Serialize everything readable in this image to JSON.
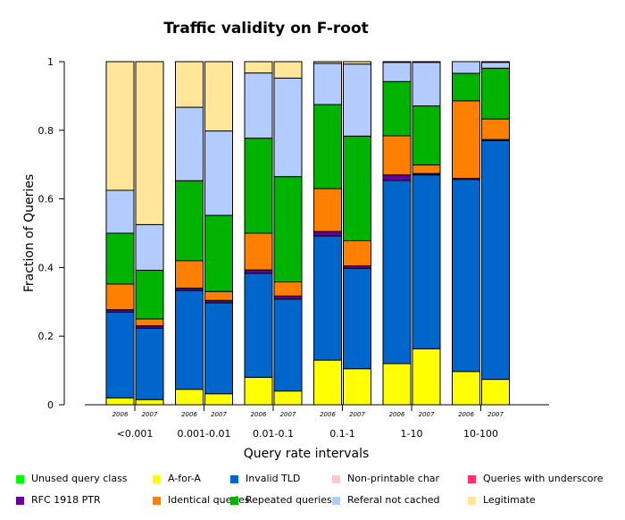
{
  "chart_data": {
    "type": "bar",
    "stacked": true,
    "title": "Traffic validity on F-root",
    "xlabel": "Query rate intervals",
    "ylabel": "Fraction of Queries",
    "ylim": [
      0,
      1
    ],
    "yticks": [
      "0",
      "0.2",
      "0.4",
      "0.6",
      "0.8",
      "1"
    ],
    "groups": [
      {
        "label": "<0.001",
        "bars": [
          {
            "label": "2006",
            "values": [
              0.0,
              0.02,
              0.25,
              0.0,
              0.0,
              0.007,
              0.075,
              0.148,
              0.125,
              0.375
            ]
          },
          {
            "label": "2007",
            "values": [
              0.0,
              0.015,
              0.208,
              0.0,
              0.0,
              0.007,
              0.02,
              0.142,
              0.133,
              0.475
            ]
          }
        ]
      },
      {
        "label": "0.001-0.01",
        "bars": [
          {
            "label": "2006",
            "values": [
              0.0,
              0.045,
              0.288,
              0.0,
              0.0,
              0.007,
              0.08,
              0.233,
              0.214,
              0.133
            ]
          },
          {
            "label": "2007",
            "values": [
              0.0,
              0.032,
              0.265,
              0.0,
              0.0,
              0.007,
              0.026,
              0.222,
              0.246,
              0.202
            ]
          }
        ]
      },
      {
        "label": "0.01-0.1",
        "bars": [
          {
            "label": "2006",
            "values": [
              0.0,
              0.08,
              0.303,
              0.0,
              0.0,
              0.01,
              0.107,
              0.277,
              0.19,
              0.033
            ]
          },
          {
            "label": "2007",
            "values": [
              0.0,
              0.04,
              0.268,
              0.0,
              0.0,
              0.009,
              0.041,
              0.307,
              0.287,
              0.048
            ]
          }
        ]
      },
      {
        "label": "0.1-1",
        "bars": [
          {
            "label": "2006",
            "values": [
              0.0,
              0.13,
              0.362,
              0.0,
              0.0,
              0.013,
              0.125,
              0.245,
              0.12,
              0.005
            ]
          },
          {
            "label": "2007",
            "values": [
              0.0,
              0.105,
              0.293,
              0.0,
              0.0,
              0.007,
              0.073,
              0.305,
              0.21,
              0.007
            ]
          }
        ]
      },
      {
        "label": "1-10",
        "bars": [
          {
            "label": "2006",
            "values": [
              0.0,
              0.12,
              0.534,
              0.0,
              0.0,
              0.016,
              0.114,
              0.158,
              0.056,
              0.002
            ]
          },
          {
            "label": "2007",
            "values": [
              0.0,
              0.163,
              0.507,
              0.0,
              0.0,
              0.004,
              0.025,
              0.172,
              0.127,
              0.002
            ]
          }
        ]
      },
      {
        "label": "10-100",
        "bars": [
          {
            "label": "2006",
            "values": [
              0.0,
              0.097,
              0.56,
              0.0,
              0.0,
              0.003,
              0.226,
              0.08,
              0.034,
              0.0
            ]
          },
          {
            "label": "2007",
            "values": [
              0.0,
              0.074,
              0.696,
              0.0,
              0.0,
              0.003,
              0.06,
              0.148,
              0.017,
              0.002
            ]
          }
        ]
      }
    ],
    "series": [
      {
        "name": "Unused query class",
        "color": "#00ff00"
      },
      {
        "name": "A-for-A",
        "color": "#ffff00"
      },
      {
        "name": "Invalid TLD",
        "color": "#0066cc"
      },
      {
        "name": "Non-printable char",
        "color": "#f9cccc"
      },
      {
        "name": "Queries with underscore",
        "color": "#ff3366"
      },
      {
        "name": "RFC 1918 PTR",
        "color": "#660099"
      },
      {
        "name": "Identical queries",
        "color": "#ff8000"
      },
      {
        "name": "Repeated queries",
        "color": "#00b300"
      },
      {
        "name": "Referal not cached",
        "color": "#b3ccff"
      },
      {
        "name": "Legitimate",
        "color": "#ffe699"
      }
    ],
    "legend_position": "bottom",
    "grid": false
  }
}
